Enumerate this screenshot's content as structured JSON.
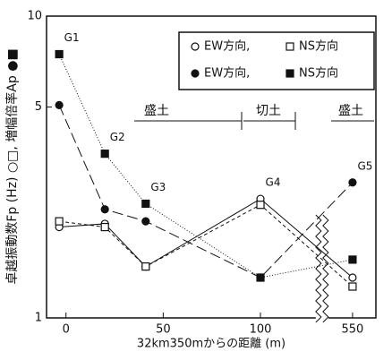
{
  "chart_data": {
    "type": "line",
    "x_label": "32km350mからの距離 (m)",
    "y_label": "卓越振動数Fp (Hz) ○□, 増幅倍率Ap ●■",
    "x": [
      -3.5,
      20,
      41,
      100,
      550
    ],
    "point_labels": [
      "G1",
      "G2",
      "G3",
      "G4",
      "G5"
    ],
    "series": [
      {
        "name": "EW方向,",
        "color": "#111111",
        "marker": "circle",
        "filled": false,
        "dash": "none",
        "values": [
          2.0,
          2.05,
          1.48,
          2.48,
          1.36
        ]
      },
      {
        "name": "NS方向",
        "color": "#111111",
        "marker": "square",
        "filled": false,
        "dash": "4 3",
        "values": [
          2.09,
          2.0,
          1.48,
          2.37,
          1.27
        ]
      },
      {
        "name": "EW方向,",
        "color": "#111111",
        "marker": "circle",
        "filled": true,
        "dash": "12 5",
        "values": [
          5.07,
          2.29,
          2.09,
          1.36,
          2.81
        ]
      },
      {
        "name": "NS方向",
        "color": "#111111",
        "marker": "square",
        "filled": true,
        "dash": "1 2",
        "values": [
          7.48,
          3.5,
          2.39,
          1.36,
          1.56
        ]
      }
    ],
    "regions": [
      "盛土",
      "切土",
      "盛土"
    ],
    "xlim": [
      -10,
      562
    ],
    "x_break": [
      128,
      538
    ],
    "xticks": [
      0,
      50,
      100,
      550
    ],
    "ylim": [
      1,
      10
    ],
    "yticks": [
      1,
      5,
      10
    ],
    "log_y": true
  }
}
